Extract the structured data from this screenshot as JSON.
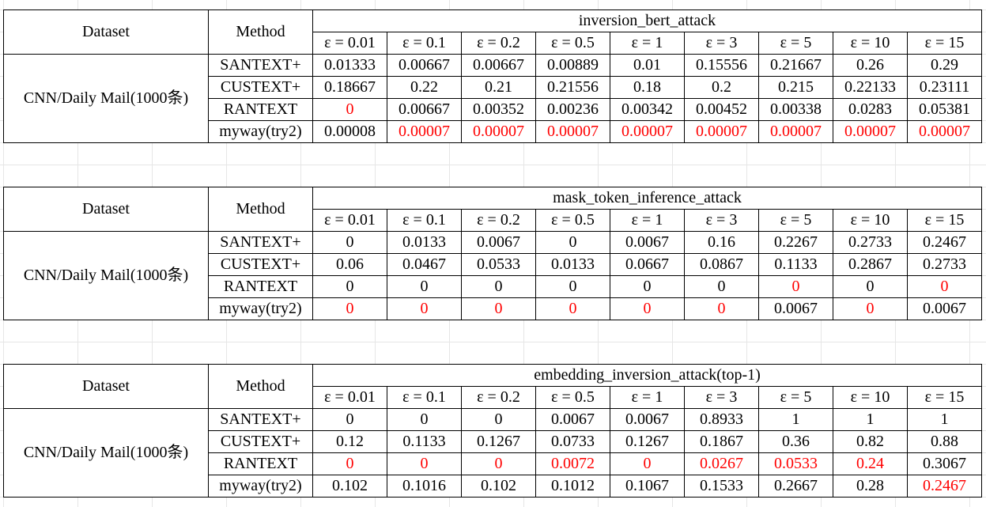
{
  "headers": {
    "dataset": "Dataset",
    "method": "Method",
    "epsilons": [
      "ε = 0.01",
      "ε = 0.1",
      "ε = 0.2",
      "ε = 0.5",
      "ε = 1",
      "ε = 3",
      "ε = 5",
      "ε = 10",
      "ε = 15"
    ]
  },
  "colors": {
    "highlight": "#ff0000",
    "text": "#000000",
    "grid": "#e6e6e6"
  },
  "tables": [
    {
      "title": "inversion_bert_attack",
      "dataset": "CNN/Daily Mail(1000条)",
      "rows": [
        {
          "method": "SANTEXT+",
          "values": [
            "0.01333",
            "0.00667",
            "0.00667",
            "0.00889",
            "0.01",
            "0.15556",
            "0.21667",
            "0.26",
            "0.29"
          ],
          "red": [
            false,
            false,
            false,
            false,
            false,
            false,
            false,
            false,
            false
          ]
        },
        {
          "method": "CUSTEXT+",
          "values": [
            "0.18667",
            "0.22",
            "0.21",
            "0.21556",
            "0.18",
            "0.2",
            "0.215",
            "0.22133",
            "0.23111"
          ],
          "red": [
            false,
            false,
            false,
            false,
            false,
            false,
            false,
            false,
            false
          ]
        },
        {
          "method": "RANTEXT",
          "values": [
            "0",
            "0.00667",
            "0.00352",
            "0.00236",
            "0.00342",
            "0.00452",
            "0.00338",
            "0.0283",
            "0.05381"
          ],
          "red": [
            true,
            false,
            false,
            false,
            false,
            false,
            false,
            false,
            false
          ]
        },
        {
          "method": "myway(try2)",
          "values": [
            "0.00008",
            "0.00007",
            "0.00007",
            "0.00007",
            "0.00007",
            "0.00007",
            "0.00007",
            "0.00007",
            "0.00007"
          ],
          "red": [
            false,
            true,
            true,
            true,
            true,
            true,
            true,
            true,
            true
          ]
        }
      ]
    },
    {
      "title": "mask_token_inference_attack",
      "dataset": "CNN/Daily Mail(1000条)",
      "rows": [
        {
          "method": "SANTEXT+",
          "values": [
            "0",
            "0.0133",
            "0.0067",
            "0",
            "0.0067",
            "0.16",
            "0.2267",
            "0.2733",
            "0.2467"
          ],
          "red": [
            false,
            false,
            false,
            false,
            false,
            false,
            false,
            false,
            false
          ]
        },
        {
          "method": "CUSTEXT+",
          "values": [
            "0.06",
            "0.0467",
            "0.0533",
            "0.0133",
            "0.0667",
            "0.0867",
            "0.1133",
            "0.2867",
            "0.2733"
          ],
          "red": [
            false,
            false,
            false,
            false,
            false,
            false,
            false,
            false,
            false
          ]
        },
        {
          "method": "RANTEXT",
          "values": [
            "0",
            "0",
            "0",
            "0",
            "0",
            "0",
            "0",
            "0",
            "0"
          ],
          "red": [
            false,
            false,
            false,
            false,
            false,
            false,
            true,
            false,
            true
          ]
        },
        {
          "method": "myway(try2)",
          "values": [
            "0",
            "0",
            "0",
            "0",
            "0",
            "0",
            "0.0067",
            "0",
            "0.0067"
          ],
          "red": [
            true,
            true,
            true,
            true,
            true,
            true,
            false,
            true,
            false
          ]
        }
      ]
    },
    {
      "title": "embedding_inversion_attack(top-1)",
      "dataset": "CNN/Daily Mail(1000条)",
      "rows": [
        {
          "method": "SANTEXT+",
          "values": [
            "0",
            "0",
            "0",
            "0.0067",
            "0.0067",
            "0.8933",
            "1",
            "1",
            "1"
          ],
          "red": [
            false,
            false,
            false,
            false,
            false,
            false,
            false,
            false,
            false
          ]
        },
        {
          "method": "CUSTEXT+",
          "values": [
            "0.12",
            "0.1133",
            "0.1267",
            "0.0733",
            "0.1267",
            "0.1867",
            "0.36",
            "0.82",
            "0.88"
          ],
          "red": [
            false,
            false,
            false,
            false,
            false,
            false,
            false,
            false,
            false
          ]
        },
        {
          "method": "RANTEXT",
          "values": [
            "0",
            "0",
            "0",
            "0.0072",
            "0",
            "0.0267",
            "0.0533",
            "0.24",
            "0.3067"
          ],
          "red": [
            true,
            true,
            true,
            true,
            true,
            true,
            true,
            true,
            false
          ]
        },
        {
          "method": "myway(try2)",
          "values": [
            "0.102",
            "0.1016",
            "0.102",
            "0.1012",
            "0.1067",
            "0.1533",
            "0.2667",
            "0.28",
            "0.2467"
          ],
          "red": [
            false,
            false,
            false,
            false,
            false,
            false,
            false,
            false,
            true
          ]
        }
      ]
    }
  ]
}
